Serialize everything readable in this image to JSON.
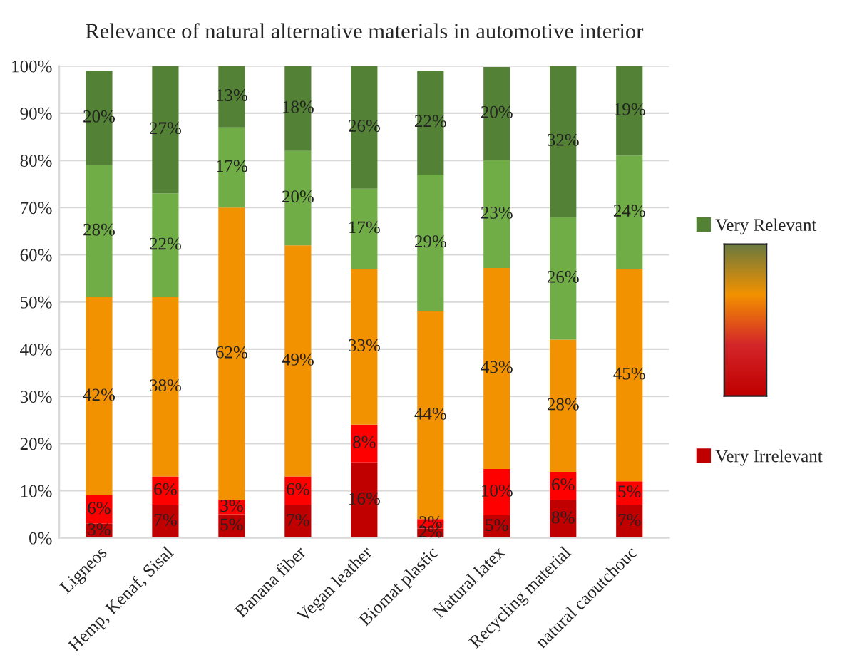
{
  "chart_data": {
    "type": "bar",
    "stacked": true,
    "title": "Relevance of natural alternative materials in automotive interior",
    "categories": [
      "Ligneos",
      "Hemp, Kenaf, Sisal",
      null,
      "Banana fiber",
      "Vegan leather",
      "Biomat plastic",
      "Natural latex",
      "Recycling material",
      "natural caoutchouc"
    ],
    "series": [
      {
        "name": "Very Irrelevant",
        "color": "#c00000",
        "values": [
          3,
          7,
          5,
          7,
          16,
          2,
          4.8,
          8,
          7
        ],
        "value_labels": [
          "3%",
          "7%",
          "5%",
          "7%",
          "16%",
          "2%",
          "5%",
          "8%",
          "7%"
        ]
      },
      {
        "color": "#ff0000",
        "values": [
          6,
          6,
          3,
          6,
          8,
          2,
          9.8,
          6,
          5
        ],
        "value_labels": [
          "6%",
          "6%",
          "3%",
          "6%",
          "8%",
          "2%",
          "10%",
          "6%",
          "5%"
        ]
      },
      {
        "color": "#f39200",
        "values": [
          42,
          38,
          62,
          49,
          33,
          44,
          42.6,
          28,
          45
        ],
        "value_labels": [
          "42%",
          "38%",
          "62%",
          "49%",
          "33%",
          "44%",
          "43%",
          "28%",
          "45%"
        ]
      },
      {
        "color": "#70ad47",
        "values": [
          28,
          22,
          17,
          20,
          17,
          29,
          22.8,
          26,
          24
        ],
        "value_labels": [
          "28%",
          "22%",
          "17%",
          "20%",
          "17%",
          "29%",
          "23%",
          "26%",
          "24%"
        ]
      },
      {
        "name": "Very Relevant",
        "color": "#538135",
        "values": [
          20,
          27,
          13,
          18,
          26,
          22,
          19.8,
          32,
          19
        ],
        "value_labels": [
          "20%",
          "27%",
          "13%",
          "18%",
          "26%",
          "22%",
          "20%",
          "32%",
          "19%"
        ]
      }
    ],
    "ylim": [
      0,
      100
    ],
    "yticks": [
      {
        "value": 0,
        "label": "0%"
      },
      {
        "value": 10,
        "label": "10%"
      },
      {
        "value": 20,
        "label": "20%"
      },
      {
        "value": 30,
        "label": "30%"
      },
      {
        "value": 40,
        "label": "40%"
      },
      {
        "value": 50,
        "label": "50%"
      },
      {
        "value": 60,
        "label": "60%"
      },
      {
        "value": 70,
        "label": "70%"
      },
      {
        "value": 80,
        "label": "80%"
      },
      {
        "value": 90,
        "label": "90%"
      },
      {
        "value": 100,
        "label": "100%"
      }
    ],
    "grid": "y",
    "legend": "right"
  }
}
